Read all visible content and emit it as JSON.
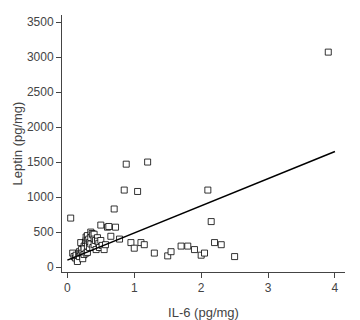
{
  "chart_data": {
    "type": "scatter",
    "xlabel": "IL-6 (pg/mg)",
    "ylabel": "Leptin (pg/mg)",
    "series": [
      {
        "type": "scatter",
        "marker": "square",
        "color": "white",
        "x": [
          0.05,
          0.08,
          0.1,
          0.12,
          0.13,
          0.15,
          0.15,
          0.17,
          0.18,
          0.18,
          0.2,
          0.2,
          0.21,
          0.22,
          0.23,
          0.23,
          0.25,
          0.25,
          0.25,
          0.27,
          0.28,
          0.28,
          0.28,
          0.3,
          0.3,
          0.3,
          0.3,
          0.32,
          0.33,
          0.33,
          0.35,
          0.35,
          0.35,
          0.37,
          0.38,
          0.38,
          0.4,
          0.4,
          0.4,
          0.42,
          0.43,
          0.45,
          0.45,
          0.47,
          0.48,
          0.5,
          0.5,
          0.52,
          0.55,
          0.57,
          0.6,
          0.62,
          0.65,
          0.7,
          0.72,
          0.78,
          0.85,
          0.88,
          0.95,
          1.0,
          1.05,
          1.1,
          1.15,
          1.2,
          1.3,
          1.5,
          1.55,
          1.7,
          1.8,
          1.9,
          2.0,
          2.05,
          2.1,
          2.15,
          2.2,
          2.3,
          2.5,
          3.9
        ],
        "values": [
          700,
          200,
          150,
          130,
          170,
          100,
          80,
          200,
          220,
          150,
          200,
          350,
          250,
          200,
          160,
          120,
          300,
          260,
          180,
          350,
          380,
          430,
          200,
          450,
          380,
          300,
          210,
          400,
          350,
          280,
          500,
          420,
          330,
          480,
          460,
          280,
          470,
          400,
          320,
          380,
          250,
          420,
          370,
          340,
          280,
          600,
          380,
          310,
          250,
          320,
          570,
          580,
          440,
          830,
          570,
          400,
          1100,
          1470,
          350,
          270,
          1080,
          350,
          320,
          1500,
          200,
          160,
          220,
          300,
          300,
          250,
          170,
          200,
          1100,
          650,
          350,
          320,
          150,
          3070
        ]
      },
      {
        "type": "line",
        "line_style": "solid",
        "color": "black",
        "x": [
          0.0,
          4.0
        ],
        "values": [
          100.0,
          1650.0
        ]
      }
    ],
    "xlim": [
      -0.08,
      4.15
    ],
    "ylim": [
      -70,
      3600
    ],
    "xticks": [
      0,
      1,
      2,
      3,
      4
    ],
    "yticks": [
      0,
      500,
      1000,
      1500,
      2000,
      2500,
      3000,
      3500
    ],
    "grid": false
  }
}
